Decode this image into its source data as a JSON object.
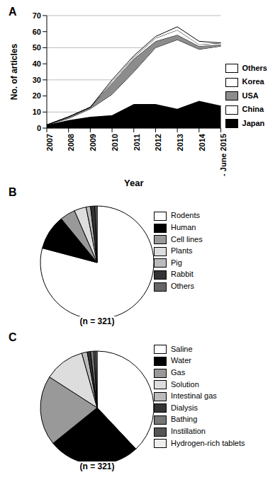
{
  "chart_data": [
    {
      "type": "area",
      "title": "A",
      "xlabel": "Year",
      "ylabel": "No. of articles",
      "categories": [
        "2007",
        "2008",
        "2009",
        "2010",
        "2011",
        "2012",
        "2013",
        "2014",
        "- June 2015"
      ],
      "stacked": true,
      "legend": "right",
      "grid": true,
      "ylim": [
        0,
        70
      ],
      "yticks": [
        0,
        10,
        20,
        30,
        40,
        50,
        60,
        70
      ],
      "series": [
        {
          "name": "Japan",
          "color": "#000000",
          "values": [
            2,
            5,
            7,
            8,
            15,
            15,
            12,
            17,
            14
          ]
        },
        {
          "name": "China",
          "color": "#ffffff",
          "values": [
            0,
            1,
            5,
            13,
            20,
            35,
            43,
            32,
            37
          ]
        },
        {
          "name": "USA",
          "color": "#8c8c8c",
          "values": [
            0,
            1,
            1,
            7,
            8,
            4,
            3,
            2,
            1
          ]
        },
        {
          "name": "Korea",
          "color": "#ffffff",
          "values": [
            0,
            0,
            0,
            1,
            1,
            2,
            3,
            1,
            1
          ]
        },
        {
          "name": "Others",
          "color": "#ffffff",
          "values": [
            0,
            0,
            0,
            1,
            1,
            1,
            2,
            2,
            0
          ]
        }
      ]
    },
    {
      "type": "pie",
      "title": "B",
      "subtitle": "(n = 321)",
      "legend": "right",
      "categories": [
        "Rodents",
        "Human",
        "Cell lines",
        "Plants",
        "Pig",
        "Rabbit",
        "Others"
      ],
      "values": [
        254,
        32,
        14,
        11,
        4,
        4,
        2
      ],
      "colors": [
        "#ffffff",
        "#000000",
        "#999999",
        "#dddddd",
        "#bbbbbb",
        "#333333",
        "#666666"
      ]
    },
    {
      "type": "pie",
      "title": "C",
      "subtitle": "(n = 321)",
      "legend": "right",
      "categories": [
        "Saline",
        "Water",
        "Gas",
        "Solution",
        "Intestinal gas",
        "Dialysis",
        "Bathing",
        "Instillation",
        "Hydrogen-rich tablets"
      ],
      "values": [
        122,
        84,
        64,
        37,
        5,
        3,
        3,
        2,
        1
      ],
      "colors": [
        "#ffffff",
        "#000000",
        "#999999",
        "#dddddd",
        "#bbbbbb",
        "#333333",
        "#777777",
        "#555555",
        "#eeeeee"
      ]
    }
  ]
}
